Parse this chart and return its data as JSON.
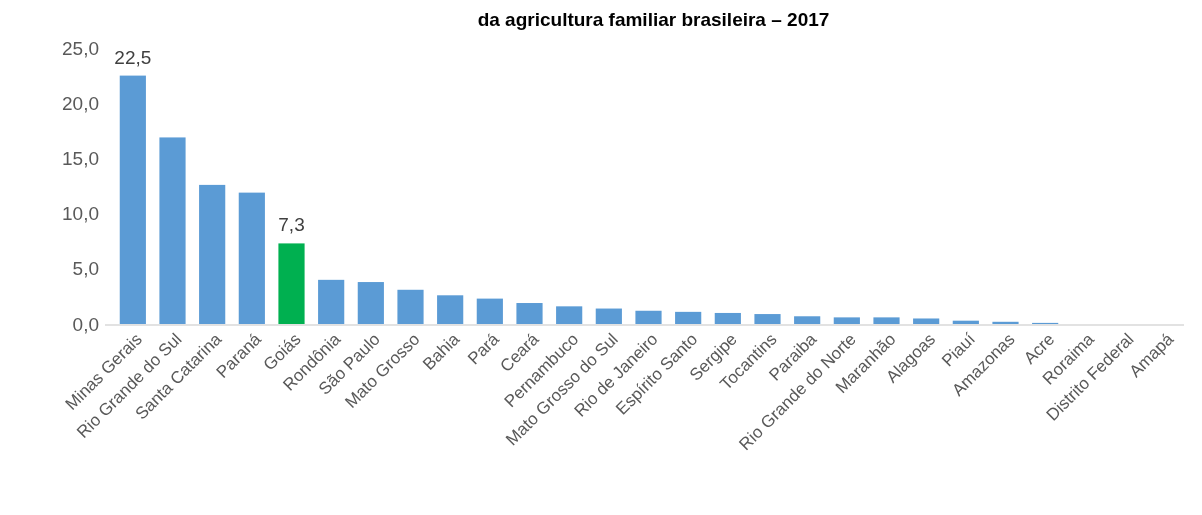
{
  "chart_data": {
    "type": "bar",
    "title": "da agricultura familiar brasileira – 2017",
    "categories": [
      "Minas Gerais",
      "Rio Grande do Sul",
      "Santa Catarina",
      "Paraná",
      "Goiás",
      "Rondônia",
      "São Paulo",
      "Mato Grosso",
      "Bahia",
      "Pará",
      "Ceará",
      "Pernambuco",
      "Mato Grosso do Sul",
      "Rio de Janeiro",
      "Espírito Santo",
      "Sergipe",
      "Tocantins",
      "Paraiba",
      "Rio Grande do Norte",
      "Maranhão",
      "Alagoas",
      "Piauí",
      "Amazonas",
      "Acre",
      "Roraima",
      "Distrito Federal",
      "Amapá"
    ],
    "values": [
      22.5,
      16.9,
      12.6,
      11.9,
      7.3,
      4.0,
      3.8,
      3.1,
      2.6,
      2.3,
      1.9,
      1.6,
      1.4,
      1.2,
      1.1,
      1.0,
      0.9,
      0.7,
      0.6,
      0.6,
      0.5,
      0.3,
      0.2,
      0.1,
      0,
      0,
      0
    ],
    "colors": [
      "#5b9bd5",
      "#5b9bd5",
      "#5b9bd5",
      "#5b9bd5",
      "#00b050",
      "#5b9bd5",
      "#5b9bd5",
      "#5b9bd5",
      "#5b9bd5",
      "#5b9bd5",
      "#5b9bd5",
      "#5b9bd5",
      "#5b9bd5",
      "#5b9bd5",
      "#5b9bd5",
      "#5b9bd5",
      "#5b9bd5",
      "#5b9bd5",
      "#5b9bd5",
      "#5b9bd5",
      "#5b9bd5",
      "#5b9bd5",
      "#5b9bd5",
      "#5b9bd5",
      "#5b9bd5",
      "#5b9bd5",
      "#5b9bd5"
    ],
    "value_labels": [
      "22,5",
      null,
      null,
      null,
      "7,3",
      null,
      null,
      null,
      null,
      null,
      null,
      null,
      null,
      null,
      null,
      null,
      null,
      null,
      null,
      null,
      null,
      null,
      null,
      null,
      null,
      null,
      null
    ],
    "ylim": [
      0,
      25
    ],
    "yticks": [
      {
        "value": 0,
        "label": "0,0"
      },
      {
        "value": 5,
        "label": "5,0"
      },
      {
        "value": 10,
        "label": "10,0"
      },
      {
        "value": 15,
        "label": "15,0"
      },
      {
        "value": 20,
        "label": "20,0"
      },
      {
        "value": 25,
        "label": "25,0"
      }
    ],
    "grid": false
  }
}
